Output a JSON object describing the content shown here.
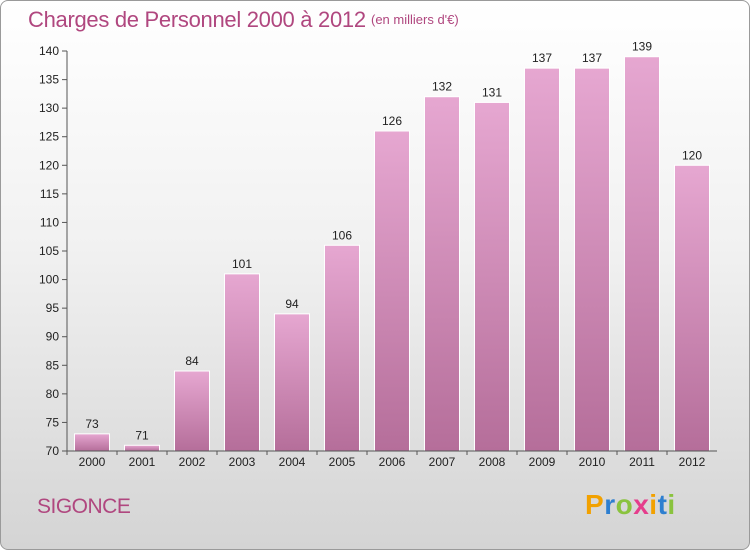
{
  "title": "Charges de Personnel 2000 à 2012",
  "unit": "(en milliers d'€)",
  "commune": "SIGONCE",
  "logo": {
    "letters": [
      "P",
      "r",
      "o",
      "x",
      "i",
      "t",
      "i"
    ],
    "colors": [
      "#f2a100",
      "#2e7fd0",
      "#8ac33e",
      "#e53d8c",
      "#f2a100",
      "#2e7fd0",
      "#8ac33e"
    ]
  },
  "colors": {
    "bar_top": "#e6a7d1",
    "bar_bottom": "#b56e9a",
    "title": "#b0477f"
  },
  "chart_data": {
    "type": "bar",
    "categories": [
      "2000",
      "2001",
      "2002",
      "2003",
      "2004",
      "2005",
      "2006",
      "2007",
      "2008",
      "2009",
      "2010",
      "2011",
      "2012"
    ],
    "values": [
      73,
      71,
      84,
      101,
      94,
      106,
      126,
      132,
      131,
      137,
      137,
      139,
      120
    ],
    "ylim": [
      70,
      140
    ],
    "yticks": [
      70,
      75,
      80,
      85,
      90,
      95,
      100,
      105,
      110,
      115,
      120,
      125,
      130,
      135,
      140
    ],
    "grid": false,
    "legend": "none"
  }
}
